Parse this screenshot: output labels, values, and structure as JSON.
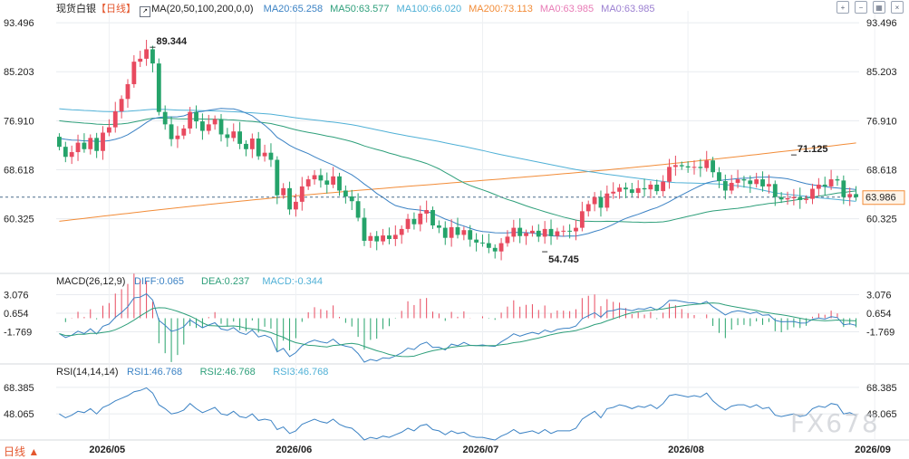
{
  "header": {
    "symbol": "现货白银",
    "period": "【日线】",
    "ma_params": "MA(20,50,100,200,0,0)",
    "ma_values": [
      {
        "label": "MA20:65.258",
        "color": "#3b82c4"
      },
      {
        "label": "MA50:63.577",
        "color": "#2e9f7a"
      },
      {
        "label": "MA100:66.020",
        "color": "#4fb0d6"
      },
      {
        "label": "MA200:73.113",
        "color": "#f28c38"
      },
      {
        "label": "MA0:63.985",
        "color": "#e87bb6"
      },
      {
        "label": "MA0:63.985",
        "color": "#9b7fd1"
      }
    ]
  },
  "toolbar": {
    "icons": [
      "zoom-in-icon",
      "zoom-out-icon",
      "layout-icon",
      "close-icon"
    ]
  },
  "bottom_label": "日线 ▲",
  "watermark": "FX678",
  "colors": {
    "up": "#e84a5f",
    "down": "#25a36a",
    "grid": "#e8ebef"
  },
  "chart_data": [
    {
      "type": "candlestick",
      "title": "现货白银【日线】",
      "y_ticks": [
        93.496,
        85.203,
        76.91,
        68.618,
        60.325
      ],
      "ylim": [
        52.0,
        95.5
      ],
      "last_price": 63.986,
      "last_price_label": "63.986",
      "annotations": [
        {
          "label": "89.344",
          "index": 15,
          "value": 89.344
        },
        {
          "label": "54.745",
          "index": 78,
          "value": 54.745
        },
        {
          "label": "71.125",
          "index": 118,
          "value": 71.125
        }
      ],
      "x_ticks": [
        {
          "label": "2026/05",
          "index": 8
        },
        {
          "label": "2026/06",
          "index": 38
        },
        {
          "label": "2026/07",
          "index": 68
        },
        {
          "label": "2026/08",
          "index": 101
        },
        {
          "label": "2026/09",
          "index": 131
        }
      ],
      "candles_close": [
        72.5,
        70.8,
        71.6,
        73.2,
        72.1,
        74.0,
        71.8,
        74.9,
        75.8,
        78.5,
        80.6,
        83.1,
        86.9,
        87.4,
        89.0,
        86.6,
        78.4,
        76.3,
        73.8,
        74.4,
        75.6,
        78.4,
        76.8,
        75.2,
        76.3,
        77.2,
        74.6,
        74.0,
        75.1,
        73.0,
        72.1,
        73.9,
        70.9,
        71.5,
        70.3,
        64.3,
        65.5,
        61.9,
        63.2,
        65.8,
        67.0,
        67.7,
        66.8,
        66.1,
        67.5,
        65.1,
        64.1,
        63.3,
        60.5,
        56.6,
        57.4,
        56.5,
        57.5,
        56.9,
        57.6,
        58.6,
        60.3,
        59.4,
        61.2,
        61.8,
        59.2,
        58.8,
        57.1,
        58.9,
        57.6,
        58.4,
        56.8,
        56.3,
        56.2,
        55.4,
        54.8,
        56.2,
        57.3,
        58.8,
        57.4,
        57.9,
        58.3,
        57.3,
        58.6,
        57.4,
        58.2,
        58.3,
        58.2,
        58.8,
        61.6,
        62.8,
        64.0,
        62.2,
        64.6,
        64.9,
        65.6,
        65.3,
        64.7,
        65.5,
        65.3,
        66.1,
        65.0,
        66.6,
        69.1,
        69.4,
        69.2,
        69.0,
        69.1,
        68.9,
        70.2,
        68.2,
        66.7,
        65.1,
        66.4,
        67.0,
        66.8,
        66.2,
        67.0,
        65.8,
        66.2,
        64.0,
        63.6,
        63.8,
        64.0,
        63.5,
        63.7,
        65.4,
        66.1,
        65.8,
        67.0,
        66.8,
        64.0,
        64.5,
        63.98
      ],
      "candles_open": [
        74.2,
        72.5,
        70.8,
        71.6,
        73.2,
        72.1,
        74.0,
        71.8,
        74.9,
        75.8,
        78.5,
        80.6,
        83.1,
        86.9,
        87.4,
        89.0,
        86.6,
        78.4,
        76.3,
        73.8,
        74.4,
        75.6,
        78.4,
        76.8,
        75.2,
        76.3,
        77.2,
        74.6,
        74.0,
        75.1,
        73.0,
        72.1,
        73.9,
        70.9,
        71.5,
        70.3,
        64.3,
        65.5,
        61.9,
        63.2,
        65.8,
        67.0,
        67.7,
        66.8,
        66.1,
        67.5,
        65.1,
        64.1,
        63.3,
        60.5,
        56.6,
        57.4,
        56.5,
        57.5,
        56.9,
        57.6,
        58.6,
        60.3,
        59.4,
        61.2,
        61.8,
        59.2,
        58.8,
        57.1,
        58.9,
        57.6,
        58.4,
        56.8,
        56.3,
        56.2,
        55.4,
        54.8,
        56.2,
        57.3,
        58.8,
        57.4,
        57.9,
        58.3,
        57.3,
        58.6,
        57.4,
        58.2,
        58.3,
        58.2,
        58.8,
        61.6,
        62.8,
        64.0,
        62.2,
        64.6,
        64.9,
        65.6,
        65.3,
        64.7,
        65.5,
        65.3,
        66.1,
        65.0,
        66.6,
        69.1,
        69.4,
        69.2,
        69.0,
        69.1,
        68.9,
        70.2,
        68.2,
        66.7,
        65.1,
        66.4,
        67.0,
        66.8,
        66.2,
        67.0,
        65.8,
        66.2,
        64.0,
        63.6,
        63.8,
        64.0,
        63.5,
        63.7,
        65.4,
        66.1,
        65.8,
        67.0,
        66.8,
        64.0,
        64.5
      ]
    },
    {
      "type": "macd",
      "title": "MACD(26,12,9)",
      "legend": [
        {
          "label": "DIFF:0.065",
          "color": "#3b82c4"
        },
        {
          "label": "DEA:0.237",
          "color": "#2e9f7a"
        },
        {
          "label": "MACD:-0.344",
          "color": "#4fb0d6"
        }
      ],
      "y_ticks": [
        3.076,
        0.654,
        -1.769
      ],
      "ylim": [
        -5.5,
        4.2
      ]
    },
    {
      "type": "line",
      "title": "RSI(14,14,14)",
      "legend": [
        {
          "label": "RSI1:46.768",
          "color": "#3b82c4"
        },
        {
          "label": "RSI2:46.768",
          "color": "#2e9f7a"
        },
        {
          "label": "RSI3:46.768",
          "color": "#4fb0d6"
        }
      ],
      "y_ticks": [
        68.385,
        48.065
      ],
      "ylim": [
        28,
        78
      ],
      "values": [
        48,
        45,
        47,
        50,
        49,
        52,
        48,
        53,
        55,
        58,
        60,
        62,
        65,
        66,
        68,
        64,
        55,
        52,
        48,
        49,
        51,
        56,
        52,
        49,
        51,
        53,
        48,
        47,
        50,
        46,
        45,
        48,
        43,
        44,
        43,
        36,
        38,
        33,
        35,
        40,
        42,
        44,
        42,
        41,
        44,
        40,
        38,
        37,
        33,
        28,
        30,
        29,
        31,
        30,
        32,
        34,
        37,
        35,
        39,
        40,
        36,
        35,
        32,
        35,
        33,
        34,
        31,
        30,
        30,
        29,
        28,
        31,
        33,
        36,
        33,
        34,
        35,
        33,
        36,
        33,
        35,
        35,
        35,
        37,
        44,
        47,
        50,
        45,
        52,
        53,
        55,
        54,
        52,
        54,
        53,
        55,
        52,
        56,
        62,
        63,
        62,
        61,
        62,
        61,
        64,
        58,
        54,
        51,
        54,
        55,
        55,
        53,
        55,
        52,
        53,
        47,
        46,
        47,
        48,
        46,
        47,
        52,
        54,
        53,
        56,
        55,
        48,
        49,
        46.8
      ]
    }
  ]
}
